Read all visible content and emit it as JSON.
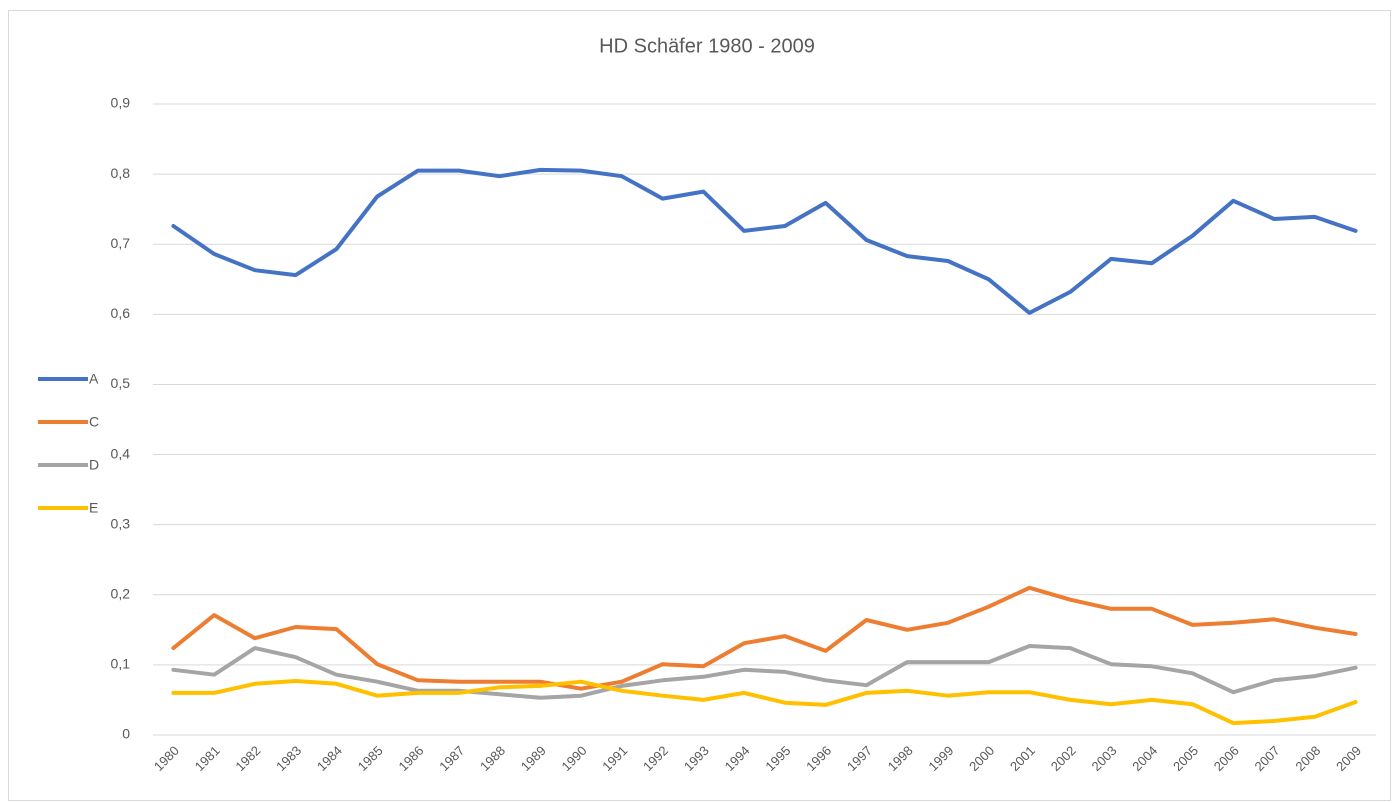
{
  "chart_data": {
    "type": "line",
    "title": "HD Schäfer 1980 - 2009",
    "categories": [
      "1980",
      "1981",
      "1982",
      "1983",
      "1984",
      "1985",
      "1986",
      "1987",
      "1988",
      "1989",
      "1990",
      "1991",
      "1992",
      "1993",
      "1994",
      "1995",
      "1996",
      "1997",
      "1998",
      "1999",
      "2000",
      "2001",
      "2002",
      "2003",
      "2004",
      "2005",
      "2006",
      "2007",
      "2008",
      "2009"
    ],
    "series": [
      {
        "name": "A",
        "color": "#4472c4",
        "values": [
          0.726,
          0.686,
          0.663,
          0.656,
          0.693,
          0.768,
          0.805,
          0.805,
          0.797,
          0.806,
          0.805,
          0.797,
          0.765,
          0.775,
          0.719,
          0.726,
          0.759,
          0.706,
          0.683,
          0.676,
          0.65,
          0.602,
          0.632,
          0.679,
          0.673,
          0.712,
          0.762,
          0.736,
          0.739,
          0.719
        ]
      },
      {
        "name": "C",
        "color": "#ed7d31",
        "values": [
          0.124,
          0.171,
          0.138,
          0.154,
          0.151,
          0.101,
          0.078,
          0.076,
          0.076,
          0.076,
          0.066,
          0.076,
          0.101,
          0.098,
          0.131,
          0.141,
          0.12,
          0.164,
          0.15,
          0.16,
          0.183,
          0.21,
          0.193,
          0.18,
          0.18,
          0.157,
          0.16,
          0.165,
          0.153,
          0.144
        ]
      },
      {
        "name": "D",
        "color": "#a5a5a5",
        "values": [
          0.093,
          0.086,
          0.124,
          0.111,
          0.086,
          0.076,
          0.063,
          0.063,
          0.058,
          0.053,
          0.056,
          0.07,
          0.078,
          0.083,
          0.093,
          0.09,
          0.078,
          0.071,
          0.104,
          0.104,
          0.104,
          0.127,
          0.124,
          0.101,
          0.098,
          0.088,
          0.061,
          0.078,
          0.084,
          0.096
        ]
      },
      {
        "name": "E",
        "color": "#ffc000",
        "values": [
          0.06,
          0.06,
          0.073,
          0.077,
          0.073,
          0.056,
          0.06,
          0.06,
          0.068,
          0.07,
          0.076,
          0.063,
          0.056,
          0.05,
          0.06,
          0.046,
          0.043,
          0.06,
          0.063,
          0.056,
          0.061,
          0.061,
          0.05,
          0.044,
          0.05,
          0.044,
          0.017,
          0.02,
          0.026,
          0.047
        ]
      }
    ],
    "ylim": [
      0,
      0.9
    ],
    "yticks": [
      0,
      {
        "value": 0.1,
        "label": "0,1"
      },
      {
        "value": 0.2,
        "label": "0,2"
      },
      {
        "value": 0.3,
        "label": "0,3"
      },
      {
        "value": 0.4,
        "label": "0,4"
      },
      {
        "value": 0.5,
        "label": "0,5"
      },
      {
        "value": 0.6,
        "label": "0,6"
      },
      {
        "value": 0.7,
        "label": "0,7"
      },
      {
        "value": 0.8,
        "label": "0,8"
      },
      {
        "value": 0.9,
        "label": "0,9"
      }
    ],
    "grid": true,
    "legend": "left"
  }
}
